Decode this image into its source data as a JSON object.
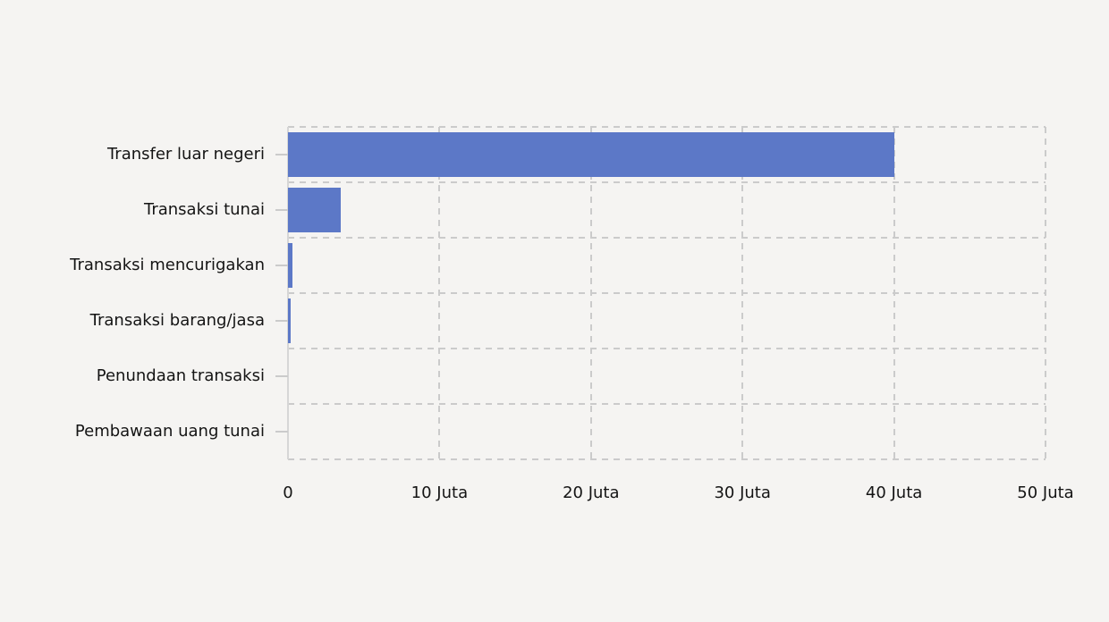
{
  "chart_data": {
    "type": "bar",
    "orientation": "horizontal",
    "title": "",
    "categories": [
      "Transfer luar negeri",
      "Transaksi tunai",
      "Transaksi mencurigakan",
      "Transaksi barang/jasa",
      "Penundaan transaksi",
      "Pembawaan uang tunai"
    ],
    "values": [
      40000000,
      3500000,
      300000,
      150000,
      0,
      0
    ],
    "x_ticks": [
      {
        "value": 0,
        "label": "0"
      },
      {
        "value": 10000000,
        "label": "10 Juta"
      },
      {
        "value": 20000000,
        "label": "20 Juta"
      },
      {
        "value": 30000000,
        "label": "30 Juta"
      },
      {
        "value": 40000000,
        "label": "40 Juta"
      },
      {
        "value": 50000000,
        "label": "50 Juta"
      }
    ],
    "xlim": [
      0,
      50000000
    ],
    "xlabel": "",
    "ylabel": "",
    "grid": "dashed",
    "legend": "none",
    "bar_color": "#5C78C7",
    "background_color": "#F5F4F2",
    "grid_color": "#CBCBCB",
    "axis_line_color": "#D6D6D6",
    "text_color": "#141414"
  }
}
